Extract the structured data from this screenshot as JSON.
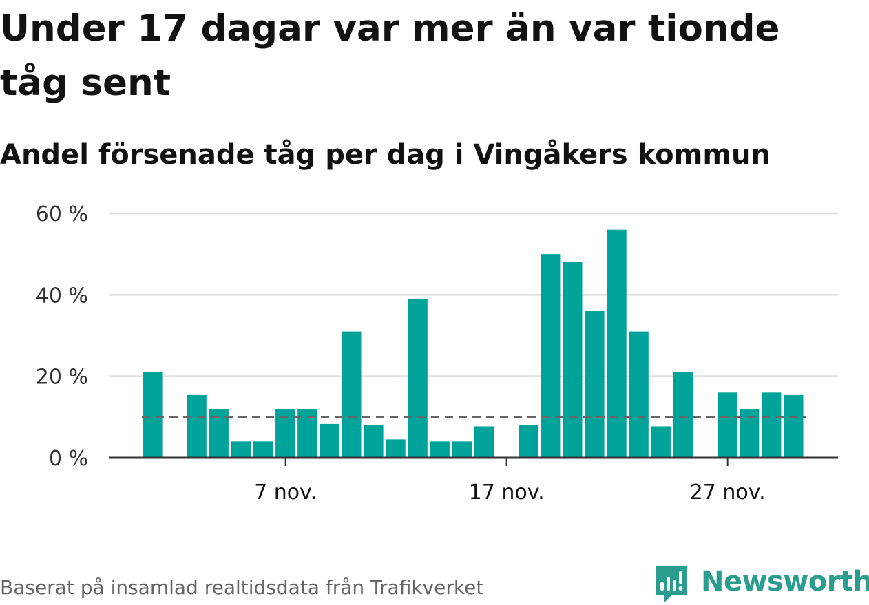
{
  "title": "Under 17 dagar var mer än var tionde tåg sent",
  "subtitle": "Andel försenade tåg per dag i Vingåkers kommun",
  "footer": "Baserat på insamlad realtidsdata från Trafikverket",
  "brand": {
    "name": "Newsworthy",
    "icon": "newsworthy-logo-icon",
    "color": "#2a9d8f"
  },
  "colors": {
    "bar": "#00a39a",
    "reference_line": "#666666",
    "grid": "#dddddd",
    "axis": "#333333"
  },
  "chart_data": {
    "type": "bar",
    "title": "Under 17 dagar var mer än var tionde tåg sent",
    "subtitle": "Andel försenade tåg per dag i Vingåkers kommun",
    "xlabel": "",
    "ylabel": "",
    "x": [
      "2023-11-01",
      "2023-11-02",
      "2023-11-03",
      "2023-11-04",
      "2023-11-05",
      "2023-11-06",
      "2023-11-07",
      "2023-11-08",
      "2023-11-09",
      "2023-11-10",
      "2023-11-11",
      "2023-11-12",
      "2023-11-13",
      "2023-11-14",
      "2023-11-15",
      "2023-11-16",
      "2023-11-17",
      "2023-11-18",
      "2023-11-19",
      "2023-11-20",
      "2023-11-21",
      "2023-11-22",
      "2023-11-23",
      "2023-11-24",
      "2023-11-25",
      "2023-11-26",
      "2023-11-27",
      "2023-11-28",
      "2023-11-29",
      "2023-11-30"
    ],
    "values": [
      21,
      null,
      15.4,
      12,
      4,
      4,
      12,
      12,
      8.3,
      31,
      8,
      4.5,
      39,
      4,
      4,
      7.7,
      null,
      8,
      50,
      48,
      36,
      56,
      31,
      7.7,
      21,
      null,
      16,
      12,
      16,
      15.4
    ],
    "reference_line": {
      "value": 10,
      "style": "dashed"
    },
    "ylim": [
      0,
      60
    ],
    "yticks": [
      0,
      20,
      40,
      60
    ],
    "ytick_labels": [
      "0 %",
      "20 %",
      "40 %",
      "60 %"
    ],
    "xticks": [
      "2023-11-07",
      "2023-11-17",
      "2023-11-27"
    ],
    "xtick_labels": [
      "7 nov.",
      "17 nov.",
      "27 nov."
    ],
    "grid": true,
    "legend": false
  }
}
